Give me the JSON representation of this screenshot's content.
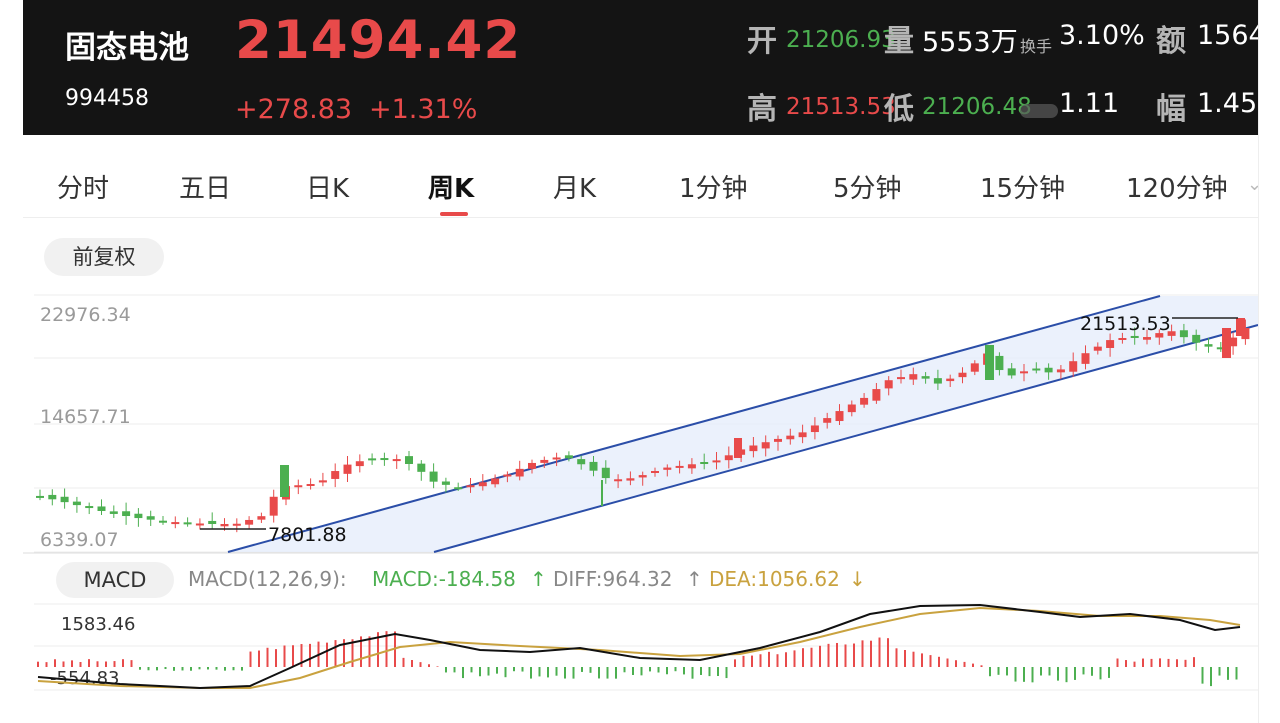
{
  "header": {
    "name": "固态电池",
    "code": "994458",
    "price": "21494.42",
    "change": "+278.83",
    "change_pct": "+1.31%",
    "open_label": "开",
    "open_value": "21206.93",
    "volume_label": "量",
    "volume_value": "5553万",
    "turnover_label": "换手",
    "turnover_value": "3.10%",
    "amount_label": "额",
    "amount_value": "1564",
    "high_label": "高",
    "high_value": "21513.53",
    "low_label": "低",
    "low_value": "21206.48",
    "ratio_value": "1.11",
    "amplitude_label": "幅",
    "amplitude_value": "1.45"
  },
  "tabs": [
    "分时",
    "五日",
    "日K",
    "周K",
    "月K",
    "1分钟",
    "5分钟",
    "15分钟",
    "120分钟"
  ],
  "active_tab": "周K",
  "adjust_button": "前复权",
  "price_axis": {
    "top": "22976.34",
    "mid": "14657.71",
    "bottom": "6339.07"
  },
  "annotations": {
    "high_marker": "21513.53",
    "low_marker": "7801.88"
  },
  "macd": {
    "button": "MACD",
    "params": "MACD(12,26,9):",
    "macd_text": "MACD:-184.58",
    "diff_text": "DIFF:964.32",
    "dea_text": "DEA:1056.62",
    "axis_top": "1583.46",
    "axis_bottom": "-554.83"
  },
  "colors": {
    "up": "#e84a4a",
    "down": "#4caf50",
    "channel": "#2b4ea8",
    "dea": "#c9a23f"
  }
}
